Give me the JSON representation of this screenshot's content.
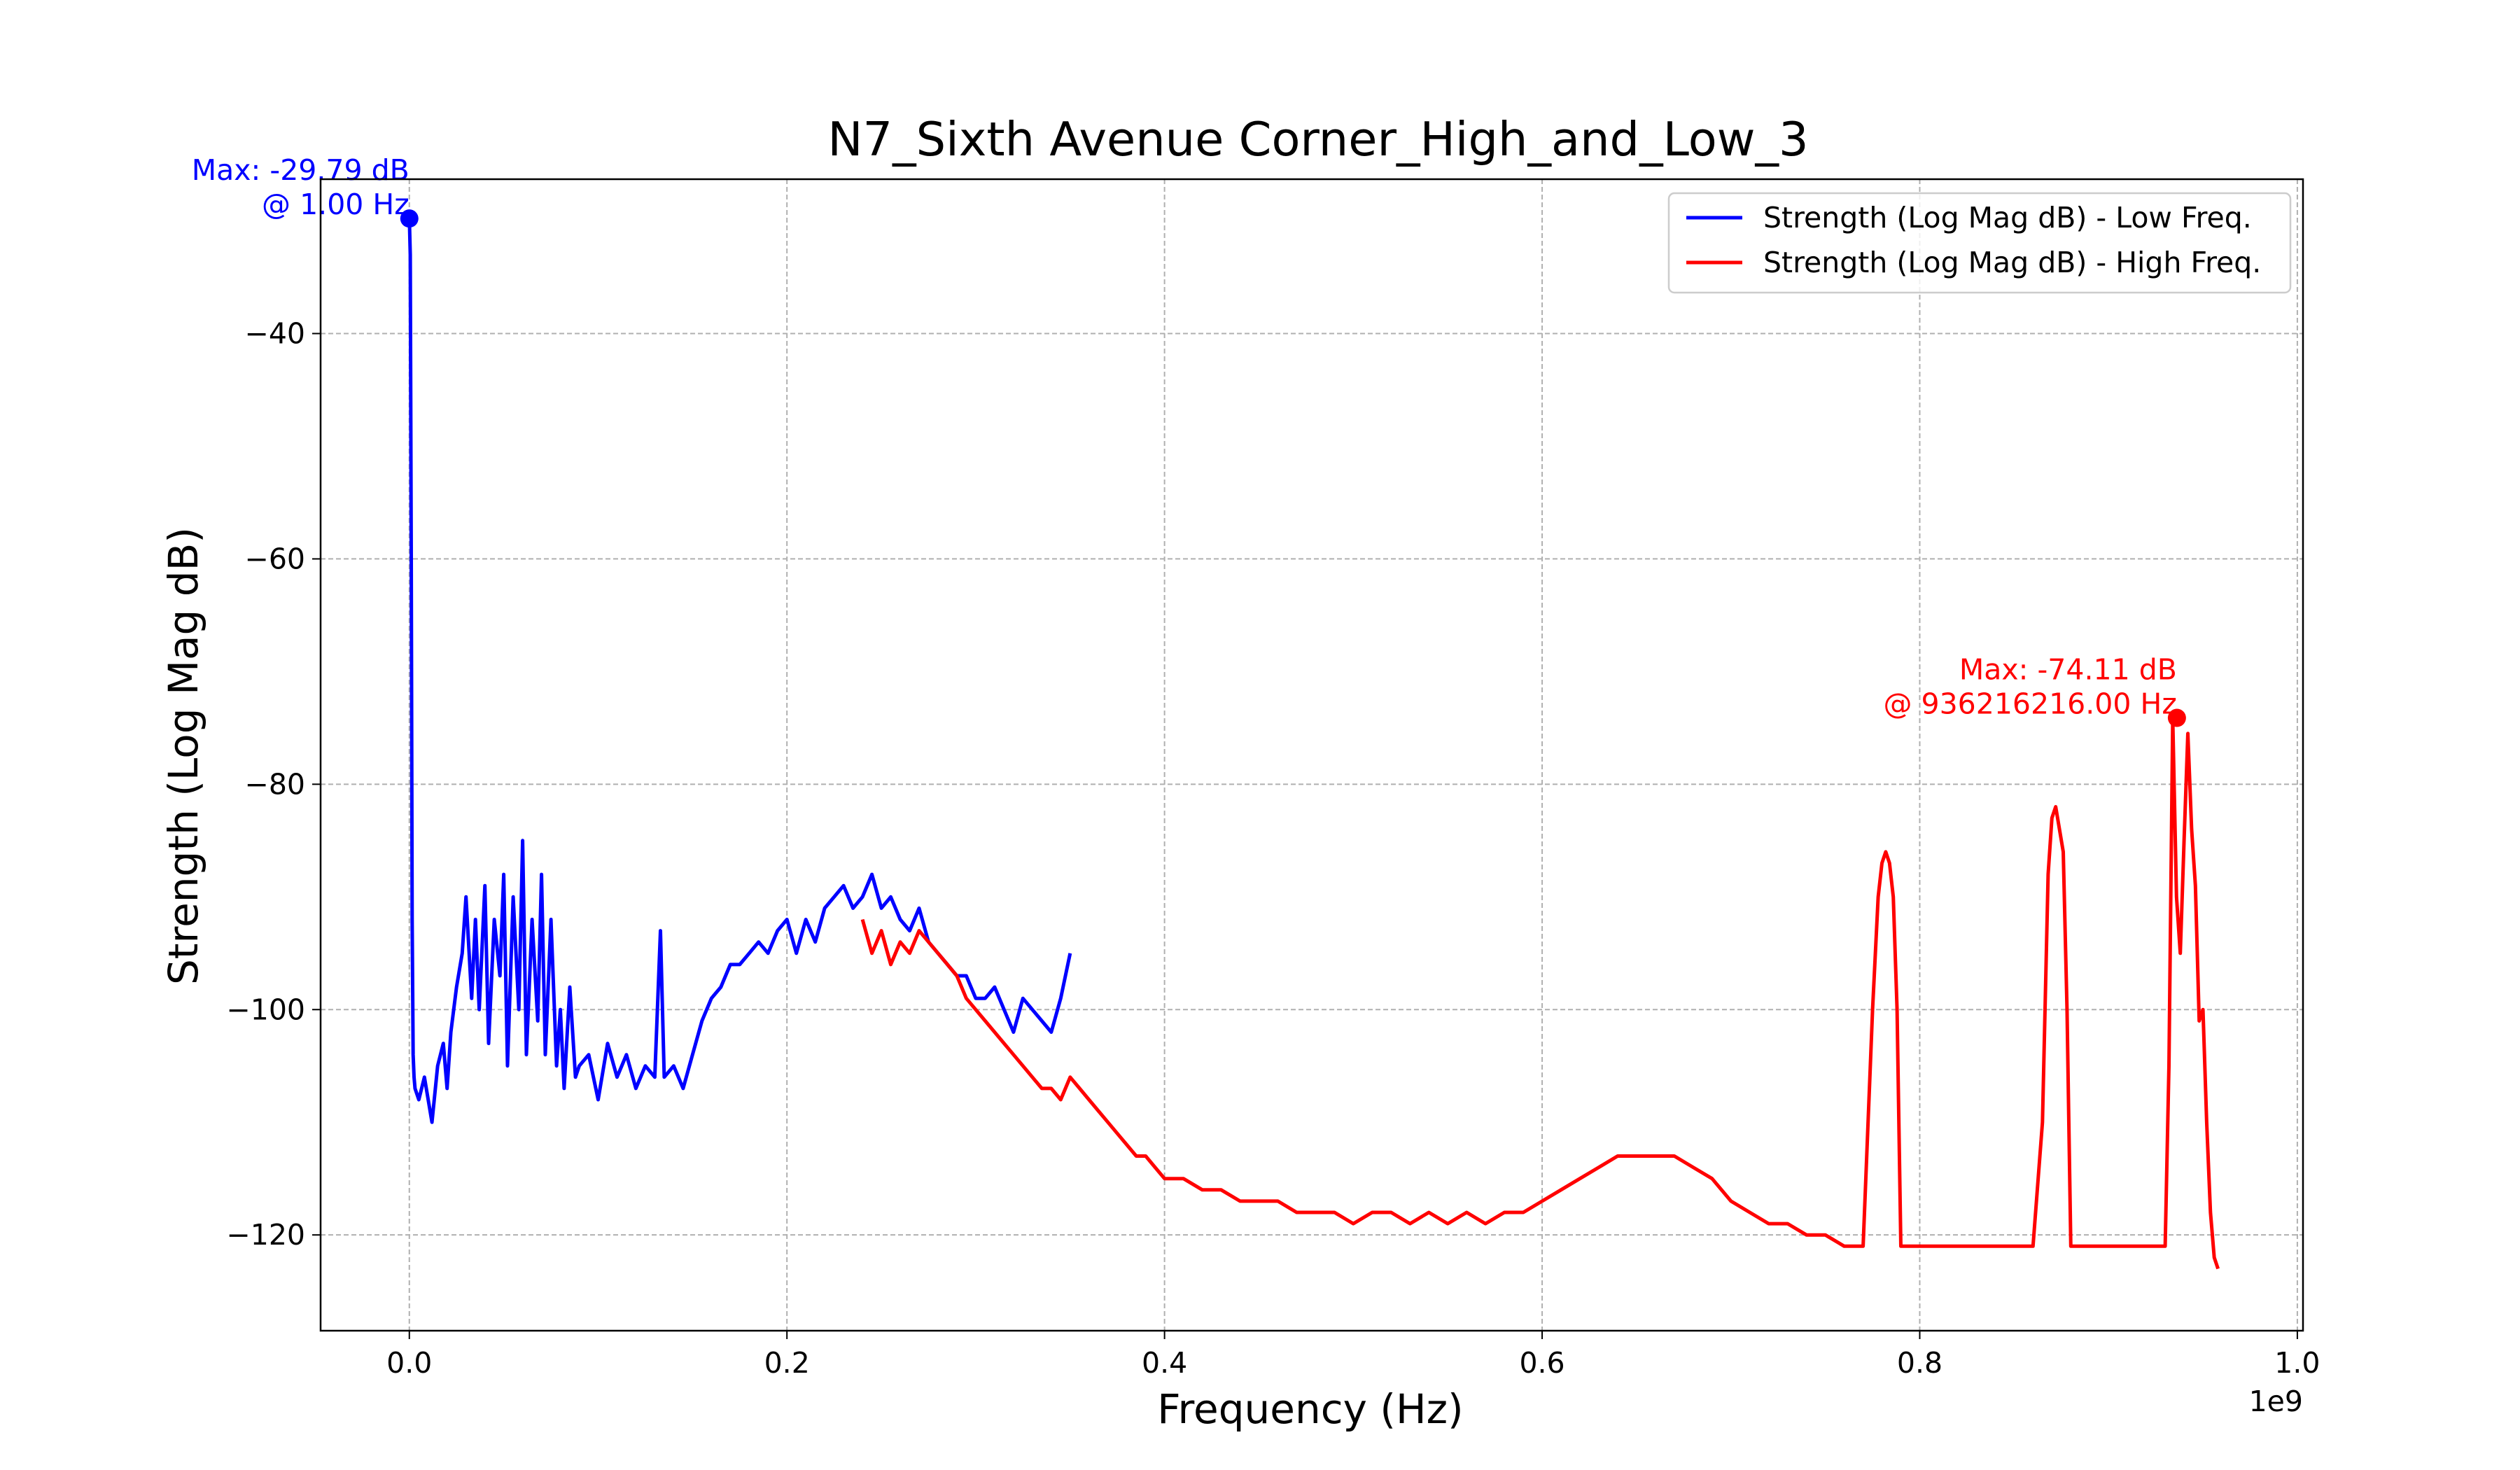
{
  "chart_data": {
    "type": "line",
    "title": "N7_Sixth Avenue Corner_High_and_Low_3",
    "xlabel": "Frequency (Hz)",
    "ylabel": "Strength (Log Mag dB)",
    "x_offset_label": "1e9",
    "x_multiplier": 1000000000,
    "xlim": [
      -0.047,
      1.003
    ],
    "ylim": [
      -128.5,
      -26.3
    ],
    "x_ticks": [
      0.0,
      0.2,
      0.4,
      0.6,
      0.8,
      1.0
    ],
    "x_tick_labels": [
      "0.0",
      "0.2",
      "0.4",
      "0.6",
      "0.8",
      "1.0"
    ],
    "y_ticks": [
      -120,
      -100,
      -80,
      -60,
      -40
    ],
    "y_tick_labels": [
      "−120",
      "−100",
      "−80",
      "−60",
      "−40"
    ],
    "grid": true,
    "legend_position": "top-right",
    "series": [
      {
        "name": "Strength (Log Mag dB) - Low Freq.",
        "color": "#0000ff",
        "x": [
          0.0,
          0.0005,
          0.001,
          0.0015,
          0.002,
          0.0025,
          0.003,
          0.005,
          0.008,
          0.012,
          0.015,
          0.018,
          0.02,
          0.022,
          0.025,
          0.028,
          0.03,
          0.033,
          0.035,
          0.037,
          0.04,
          0.042,
          0.045,
          0.048,
          0.05,
          0.052,
          0.055,
          0.058,
          0.06,
          0.062,
          0.065,
          0.068,
          0.07,
          0.072,
          0.075,
          0.078,
          0.08,
          0.082,
          0.085,
          0.088,
          0.09,
          0.095,
          0.1,
          0.105,
          0.11,
          0.115,
          0.12,
          0.125,
          0.13,
          0.133,
          0.135,
          0.14,
          0.145,
          0.15,
          0.155,
          0.16,
          0.165,
          0.17,
          0.175,
          0.18,
          0.185,
          0.19,
          0.195,
          0.2,
          0.205,
          0.21,
          0.215,
          0.22,
          0.225,
          0.23,
          0.235,
          0.24,
          0.245,
          0.25,
          0.255,
          0.26,
          0.265,
          0.27,
          0.275,
          0.28,
          0.285,
          0.29,
          0.295,
          0.3,
          0.305,
          0.31,
          0.315,
          0.32,
          0.325,
          0.33,
          0.335,
          0.34,
          0.345,
          0.35
        ],
        "y": [
          -29.79,
          -33,
          -60,
          -92,
          -104,
          -106,
          -107,
          -108,
          -106,
          -110,
          -105,
          -103,
          -107,
          -102,
          -98,
          -95,
          -90,
          -99,
          -92,
          -100,
          -89,
          -103,
          -92,
          -97,
          -88,
          -105,
          -90,
          -100,
          -85,
          -104,
          -92,
          -101,
          -88,
          -104,
          -92,
          -105,
          -100,
          -107,
          -98,
          -106,
          -105,
          -104,
          -108,
          -103,
          -106,
          -104,
          -107,
          -105,
          -106,
          -93,
          -106,
          -105,
          -107,
          -104,
          -101,
          -99,
          -98,
          -96,
          -96,
          -95,
          -94,
          -95,
          -93,
          -92,
          -95,
          -92,
          -94,
          -91,
          -90,
          -89,
          -91,
          -90,
          -88,
          -91,
          -90,
          -92,
          -93,
          -91,
          -94,
          -95,
          -96,
          -97,
          -97,
          -99,
          -99,
          -98,
          -100,
          -102,
          -99,
          -100,
          -101,
          -102,
          -99,
          -95
        ]
      },
      {
        "name": "Strength (Log Mag dB) - High Freq.",
        "color": "#ff0000",
        "x": [
          0.24,
          0.245,
          0.25,
          0.255,
          0.26,
          0.265,
          0.27,
          0.275,
          0.28,
          0.285,
          0.29,
          0.295,
          0.3,
          0.305,
          0.31,
          0.315,
          0.32,
          0.325,
          0.33,
          0.335,
          0.34,
          0.345,
          0.35,
          0.355,
          0.36,
          0.365,
          0.37,
          0.375,
          0.38,
          0.385,
          0.39,
          0.395,
          0.4,
          0.41,
          0.42,
          0.43,
          0.44,
          0.45,
          0.46,
          0.47,
          0.48,
          0.49,
          0.5,
          0.51,
          0.52,
          0.53,
          0.54,
          0.55,
          0.56,
          0.57,
          0.58,
          0.59,
          0.6,
          0.61,
          0.62,
          0.63,
          0.64,
          0.65,
          0.66,
          0.67,
          0.68,
          0.69,
          0.7,
          0.71,
          0.72,
          0.73,
          0.74,
          0.75,
          0.76,
          0.77,
          0.775,
          0.778,
          0.78,
          0.782,
          0.784,
          0.786,
          0.788,
          0.79,
          0.795,
          0.8,
          0.82,
          0.84,
          0.86,
          0.865,
          0.868,
          0.87,
          0.872,
          0.874,
          0.876,
          0.878,
          0.88,
          0.885,
          0.89,
          0.9,
          0.91,
          0.92,
          0.93,
          0.932,
          0.934,
          0.936,
          0.938,
          0.94,
          0.942,
          0.944,
          0.946,
          0.948,
          0.95,
          0.952,
          0.954,
          0.956,
          0.958
        ],
        "y": [
          -92,
          -95,
          -93,
          -96,
          -94,
          -95,
          -93,
          -94,
          -95,
          -96,
          -97,
          -99,
          -100,
          -101,
          -102,
          -103,
          -104,
          -105,
          -106,
          -107,
          -107,
          -108,
          -106,
          -107,
          -108,
          -109,
          -110,
          -111,
          -112,
          -113,
          -113,
          -114,
          -115,
          -115,
          -116,
          -116,
          -117,
          -117,
          -117,
          -118,
          -118,
          -118,
          -119,
          -118,
          -118,
          -119,
          -118,
          -119,
          -118,
          -119,
          -118,
          -118,
          -117,
          -116,
          -115,
          -114,
          -113,
          -113,
          -113,
          -113,
          -114,
          -115,
          -117,
          -118,
          -119,
          -119,
          -120,
          -120,
          -121,
          -121,
          -100,
          -90,
          -87,
          -86,
          -87,
          -90,
          -100,
          -121,
          -121,
          -121,
          -121,
          -121,
          -121,
          -110,
          -88,
          -83,
          -82,
          -84,
          -86,
          -100,
          -121,
          -121,
          -121,
          -121,
          -121,
          -121,
          -121,
          -105,
          -74.11,
          -90,
          -95,
          -85,
          -75.5,
          -84,
          -89,
          -101,
          -100,
          -110,
          -118,
          -122,
          -123
        ]
      }
    ],
    "annotations": [
      {
        "series": 0,
        "x": 0.0,
        "y": -29.79,
        "line1": "Max: -29.79 dB",
        "line2": "@ 1.00 Hz",
        "color": "#0000ff"
      },
      {
        "series": 1,
        "x": 0.936216216,
        "y": -74.11,
        "line1": "Max: -74.11 dB",
        "line2": "@ 936216216.00 Hz",
        "color": "#ff0000"
      }
    ]
  }
}
